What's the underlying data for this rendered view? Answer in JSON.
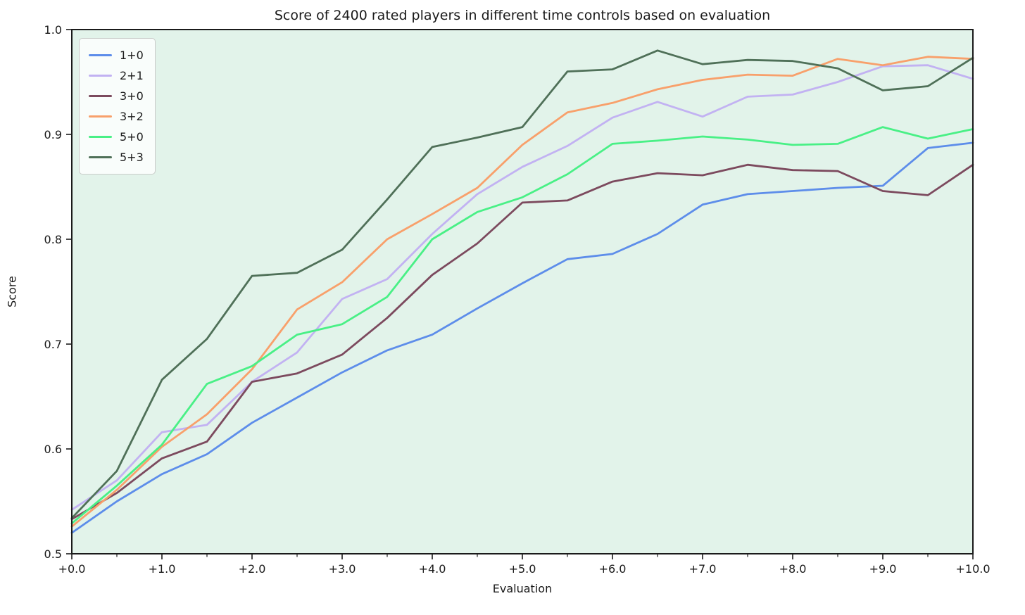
{
  "chart": {
    "title": "Score of 2400 rated players in different time controls based on evaluation",
    "xlabel": "Evaluation",
    "ylabel": "Score"
  },
  "chart_data": {
    "type": "line",
    "title": "Score of 2400 rated players in different time controls based on evaluation",
    "xlabel": "Evaluation",
    "ylabel": "Score",
    "xlim": [
      0.0,
      10.0
    ],
    "ylim": [
      0.5,
      1.0
    ],
    "grid": false,
    "legend_position": "upper left",
    "plot_background": "#e2f3ea",
    "axis_color": "#1a1a1a",
    "x": [
      0.0,
      0.5,
      1.0,
      1.5,
      2.0,
      2.5,
      3.0,
      3.5,
      4.0,
      4.5,
      5.0,
      5.5,
      6.0,
      6.5,
      7.0,
      7.5,
      8.0,
      8.5,
      9.0,
      9.5,
      10.0
    ],
    "x_major_ticks": [
      0,
      1,
      2,
      3,
      4,
      5,
      6,
      7,
      8,
      9,
      10
    ],
    "x_tick_labels": [
      "+0.0",
      "+1.0",
      "+2.0",
      "+3.0",
      "+4.0",
      "+5.0",
      "+6.0",
      "+7.0",
      "+8.0",
      "+9.0",
      "+10.0"
    ],
    "x_minor_ticks": [
      0.5,
      1.5,
      2.5,
      3.5,
      4.5,
      5.5,
      6.5,
      7.5,
      8.5,
      9.5
    ],
    "y_ticks": [
      0.5,
      0.6,
      0.7,
      0.8,
      0.9,
      1.0
    ],
    "y_tick_labels": [
      "0.5",
      "0.6",
      "0.7",
      "0.8",
      "0.9",
      "1.0"
    ],
    "series": [
      {
        "name": "1+0",
        "color": "#5d8dea",
        "values": [
          0.52,
          0.55,
          0.576,
          0.595,
          0.625,
          0.649,
          0.673,
          0.694,
          0.709,
          0.734,
          0.758,
          0.781,
          0.786,
          0.805,
          0.833,
          0.843,
          0.846,
          0.849,
          0.851,
          0.887,
          0.892
        ]
      },
      {
        "name": "2+1",
        "color": "#c2b2f2",
        "values": [
          0.542,
          0.57,
          0.616,
          0.623,
          0.664,
          0.692,
          0.743,
          0.762,
          0.805,
          0.843,
          0.869,
          0.889,
          0.916,
          0.931,
          0.917,
          0.936,
          0.938,
          0.95,
          0.965,
          0.966,
          0.953
        ]
      },
      {
        "name": "3+0",
        "color": "#7c4a5e",
        "values": [
          0.533,
          0.558,
          0.591,
          0.607,
          0.664,
          0.672,
          0.69,
          0.725,
          0.766,
          0.796,
          0.835,
          0.837,
          0.855,
          0.863,
          0.861,
          0.871,
          0.866,
          0.865,
          0.846,
          0.842,
          0.871
        ]
      },
      {
        "name": "3+2",
        "color": "#f8a06b",
        "values": [
          0.526,
          0.561,
          0.602,
          0.633,
          0.676,
          0.733,
          0.759,
          0.8,
          0.824,
          0.849,
          0.89,
          0.921,
          0.93,
          0.943,
          0.952,
          0.957,
          0.956,
          0.972,
          0.966,
          0.974,
          0.972
        ]
      },
      {
        "name": "5+0",
        "color": "#49f086",
        "values": [
          0.529,
          0.565,
          0.604,
          0.662,
          0.679,
          0.709,
          0.719,
          0.745,
          0.8,
          0.826,
          0.84,
          0.862,
          0.891,
          0.894,
          0.898,
          0.895,
          0.89,
          0.891,
          0.907,
          0.896,
          0.905
        ]
      },
      {
        "name": "5+3",
        "color": "#4f7058",
        "values": [
          0.534,
          0.579,
          0.666,
          0.705,
          0.765,
          0.768,
          0.79,
          0.838,
          0.888,
          0.897,
          0.907,
          0.96,
          0.962,
          0.98,
          0.967,
          0.971,
          0.97,
          0.963,
          0.942,
          0.946,
          0.973
        ]
      }
    ]
  }
}
